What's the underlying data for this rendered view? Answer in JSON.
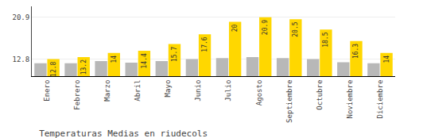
{
  "chart_data": {
    "type": "bar",
    "title": "Temperaturas Medias en riudecols",
    "categories": [
      "Enero",
      "Febrero",
      "Marzo",
      "Abril",
      "Mayo",
      "Junio",
      "Julio",
      "Agosto",
      "Septiembre",
      "Octubre",
      "Noviembre",
      "Diciembre"
    ],
    "series": [
      {
        "color": "#B8B8B8",
        "values": [
          12.0,
          12.0,
          12.4,
          12.1,
          12.4,
          12.8,
          13.0,
          13.2,
          13.0,
          12.8,
          12.2,
          12.0
        ]
      },
      {
        "color": "#FFD700",
        "values": [
          12.8,
          13.2,
          14.0,
          14.4,
          15.7,
          17.6,
          20.0,
          20.9,
          20.5,
          18.5,
          16.3,
          14.0
        ],
        "data_labels": true
      }
    ],
    "ylim": [
      9.5,
      23.0
    ],
    "yticks": [
      12.8,
      20.9
    ],
    "y2lim": [
      9.5,
      23.0
    ],
    "y2ticks": [
      12.8,
      20.9
    ],
    "grid": true
  }
}
